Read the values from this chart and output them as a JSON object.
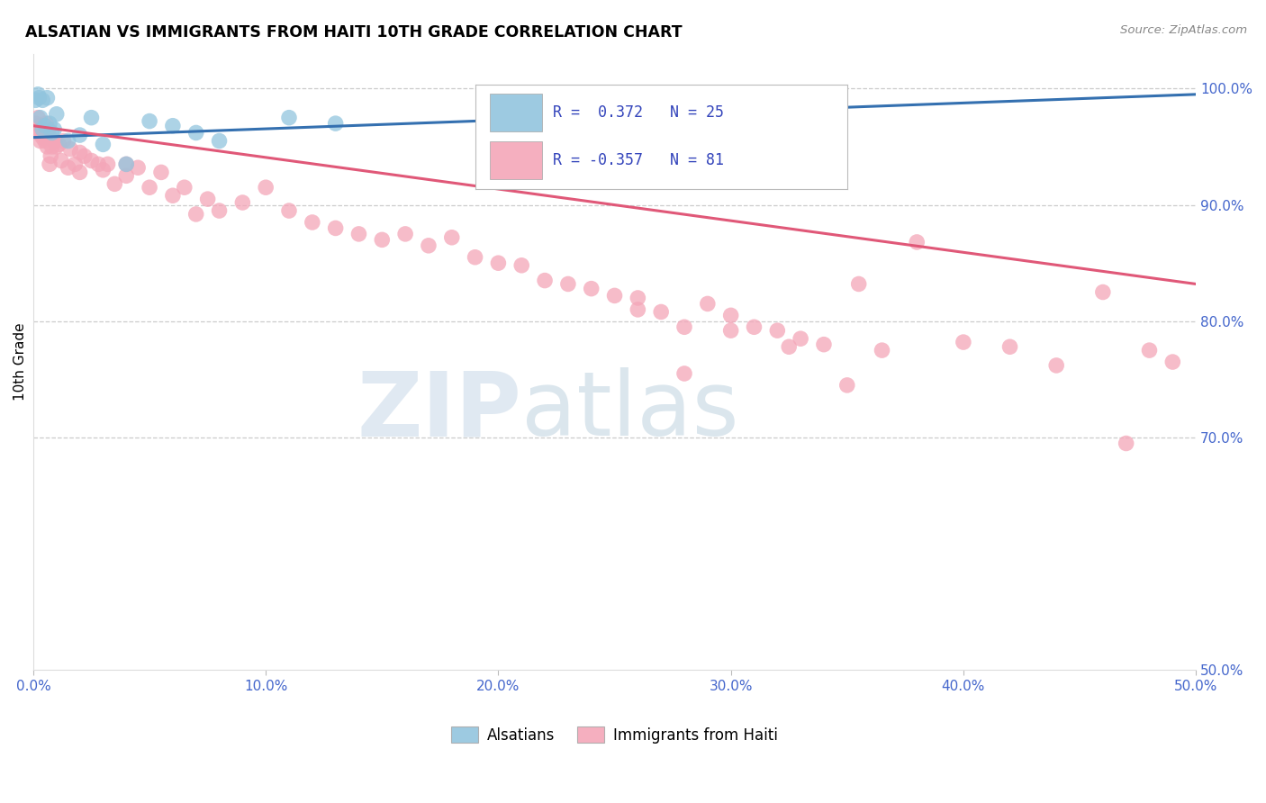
{
  "title": "ALSATIAN VS IMMIGRANTS FROM HAITI 10TH GRADE CORRELATION CHART",
  "source": "Source: ZipAtlas.com",
  "xlabel_vals": [
    0.0,
    10.0,
    20.0,
    30.0,
    40.0,
    50.0
  ],
  "ylabel_right_vals": [
    50.0,
    70.0,
    80.0,
    90.0,
    100.0
  ],
  "xlim": [
    0.0,
    50.0
  ],
  "ylim": [
    50.0,
    103.0
  ],
  "legend_label1": "Alsatians",
  "legend_label2": "Immigrants from Haiti",
  "R1": 0.372,
  "N1": 25,
  "R2": -0.357,
  "N2": 81,
  "blue_color": "#92c5de",
  "pink_color": "#f4a6b8",
  "blue_line_color": "#3470b0",
  "pink_line_color": "#e05878",
  "watermark_zip": "ZIP",
  "watermark_atlas": "atlas",
  "blue_x": [
    0.1,
    0.2,
    0.25,
    0.3,
    0.4,
    0.4,
    0.5,
    0.6,
    0.7,
    0.8,
    0.9,
    1.0,
    1.5,
    2.0,
    2.5,
    3.0,
    4.0,
    5.0,
    6.0,
    7.0,
    8.0,
    11.0,
    13.0,
    24.5,
    26.5
  ],
  "blue_y": [
    99.0,
    99.5,
    99.2,
    97.5,
    99.0,
    96.5,
    96.8,
    99.2,
    97.0,
    96.2,
    96.5,
    97.8,
    95.5,
    96.0,
    97.5,
    95.2,
    93.5,
    97.2,
    96.8,
    96.2,
    95.5,
    97.5,
    97.0,
    99.0,
    99.5
  ],
  "blue_trend_x": [
    0.0,
    50.0
  ],
  "blue_trend_y": [
    95.8,
    99.5
  ],
  "pink_x": [
    0.1,
    0.15,
    0.2,
    0.25,
    0.3,
    0.35,
    0.4,
    0.5,
    0.55,
    0.6,
    0.65,
    0.7,
    0.75,
    0.8,
    0.9,
    1.0,
    1.1,
    1.2,
    1.3,
    1.5,
    1.6,
    1.8,
    2.0,
    2.0,
    2.2,
    2.5,
    2.8,
    3.0,
    3.2,
    3.5,
    4.0,
    4.0,
    4.5,
    5.0,
    5.5,
    6.0,
    6.5,
    7.0,
    7.5,
    8.0,
    9.0,
    10.0,
    11.0,
    12.0,
    13.0,
    14.0,
    15.0,
    16.0,
    17.0,
    18.0,
    19.0,
    20.0,
    21.0,
    22.0,
    23.0,
    24.0,
    25.0,
    26.0,
    27.0,
    28.0,
    29.0,
    30.0,
    31.0,
    32.0,
    33.0,
    34.0,
    35.5,
    36.5,
    38.0,
    40.0,
    42.0,
    44.0,
    46.0,
    47.0,
    48.0,
    49.0,
    26.0,
    28.0,
    30.0,
    32.5,
    35.0
  ],
  "pink_y": [
    97.0,
    96.5,
    97.5,
    96.8,
    95.5,
    96.0,
    95.8,
    95.5,
    97.0,
    95.0,
    96.5,
    93.5,
    94.2,
    95.0,
    95.5,
    95.0,
    95.2,
    93.8,
    95.5,
    93.2,
    94.8,
    93.5,
    92.8,
    94.5,
    94.2,
    93.8,
    93.5,
    93.0,
    93.5,
    91.8,
    93.5,
    92.5,
    93.2,
    91.5,
    92.8,
    90.8,
    91.5,
    89.2,
    90.5,
    89.5,
    90.2,
    91.5,
    89.5,
    88.5,
    88.0,
    87.5,
    87.0,
    87.5,
    86.5,
    87.2,
    85.5,
    85.0,
    84.8,
    83.5,
    83.2,
    82.8,
    82.2,
    82.0,
    80.8,
    75.5,
    81.5,
    80.5,
    79.5,
    79.2,
    78.5,
    78.0,
    83.2,
    77.5,
    86.8,
    78.2,
    77.8,
    76.2,
    82.5,
    69.5,
    77.5,
    76.5,
    81.0,
    79.5,
    79.2,
    77.8,
    74.5
  ],
  "pink_trend_x": [
    0.0,
    50.0
  ],
  "pink_trend_y": [
    96.8,
    83.2
  ]
}
